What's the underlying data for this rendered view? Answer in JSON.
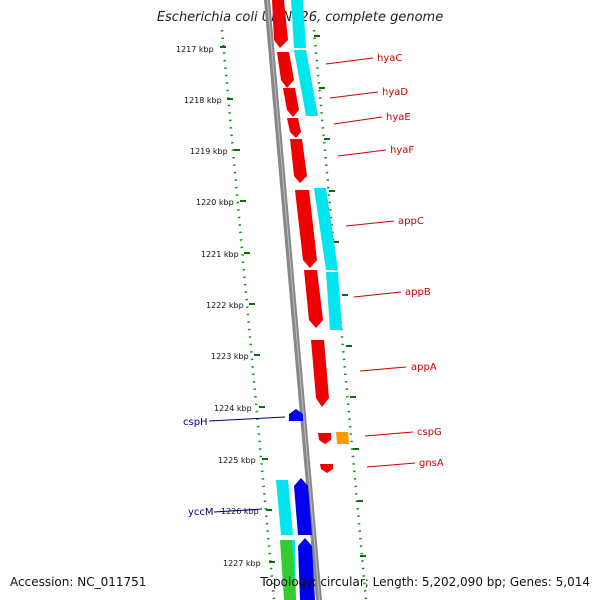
{
  "title": "Escherichia coli UMN026, complete genome",
  "footer": {
    "accession": "Accession: NC_011751",
    "stats": "Topology: circular; Length: 5,202,090 bp; Genes: 5,014"
  },
  "ticks": [
    "1217 kbp",
    "1218 kbp",
    "1219 kbp",
    "1220 kbp",
    "1221 kbp",
    "1222 kbp",
    "1223 kbp",
    "1224 kbp",
    "1225 kbp",
    "1226 kbp",
    "1227 kbp"
  ],
  "genes_right": [
    "hyaC",
    "hyaD",
    "hyaE",
    "hyaF",
    "appC",
    "appB",
    "appA",
    "cspG",
    "gnsA"
  ],
  "genes_left": [
    "cspH",
    "yccM"
  ],
  "colors": {
    "backbone": "#808080",
    "cds_forward": "#ff0000",
    "cds_reverse": "#0000ff",
    "feature_cyan": "#00ffff",
    "feature_green": "#33cc33",
    "feature_orange": "#ff9900",
    "ruler_dots": "#008000"
  }
}
